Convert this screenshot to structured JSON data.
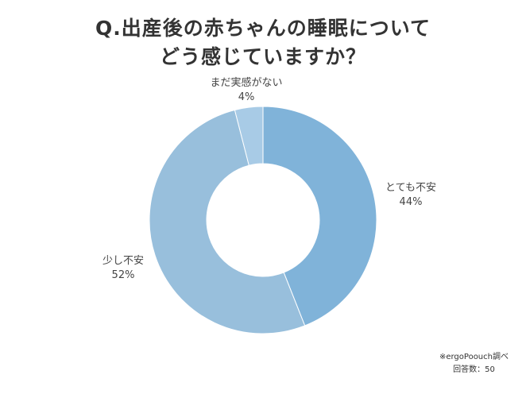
{
  "chart_data": {
    "type": "pie",
    "title_lines": [
      "Q.出産後の赤ちゃんの睡眠について",
      "どう感じていますか？"
    ],
    "slices": [
      {
        "label": "とても不安",
        "value": 44,
        "display": "44%",
        "color": "#80b3d9"
      },
      {
        "label": "少し不安",
        "value": 52,
        "display": "52%",
        "color": "#98bfdc"
      },
      {
        "label": "まだ実感がない",
        "value": 4,
        "display": "4%",
        "color": "#a8cbe6"
      }
    ]
  },
  "footnote": {
    "source": "※ergoPoouch調べ",
    "respondents": "回答数：50"
  }
}
